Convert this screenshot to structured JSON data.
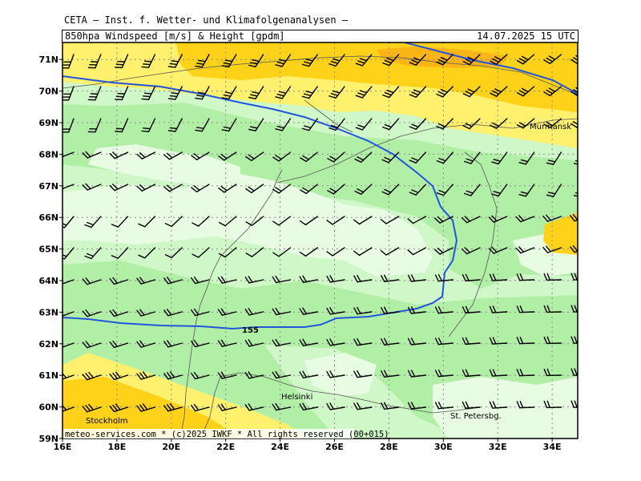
{
  "header": {
    "institute": "CETA — Inst. f. Wetter- und Klimafolgenanalysen —",
    "variable": "850hpa Windspeed [m/s] & Height [gpdm]",
    "datetime": "14.07.2025 15 UTC"
  },
  "footer": {
    "credit": "meteo-services.com * (c)2025 IWKF * All rights reserved (00+015)"
  },
  "axes": {
    "lon_labels": [
      "16E",
      "18E",
      "20E",
      "22E",
      "24E",
      "26E",
      "28E",
      "30E",
      "32E",
      "34E"
    ],
    "lat_labels": [
      "59N",
      "60N",
      "61N",
      "62N",
      "63N",
      "64N",
      "65N",
      "66N",
      "67N",
      "68N",
      "69N",
      "70N",
      "71N"
    ]
  },
  "cities": [
    {
      "name": "Murmansk"
    },
    {
      "name": "Helsinki"
    },
    {
      "name": "Stockholm"
    },
    {
      "name": "St. Petersbg."
    }
  ],
  "contour_label": "155",
  "colors": {
    "wind_lt5": "#e8fce4",
    "wind_5_10": "#cff7c8",
    "wind_10_15": "#b2efa6",
    "wind_15_20": "#fff06e",
    "wind_20_25": "#ffd21a",
    "wind_gt25": "#fcb416",
    "height_contour": "#2255dd"
  }
}
